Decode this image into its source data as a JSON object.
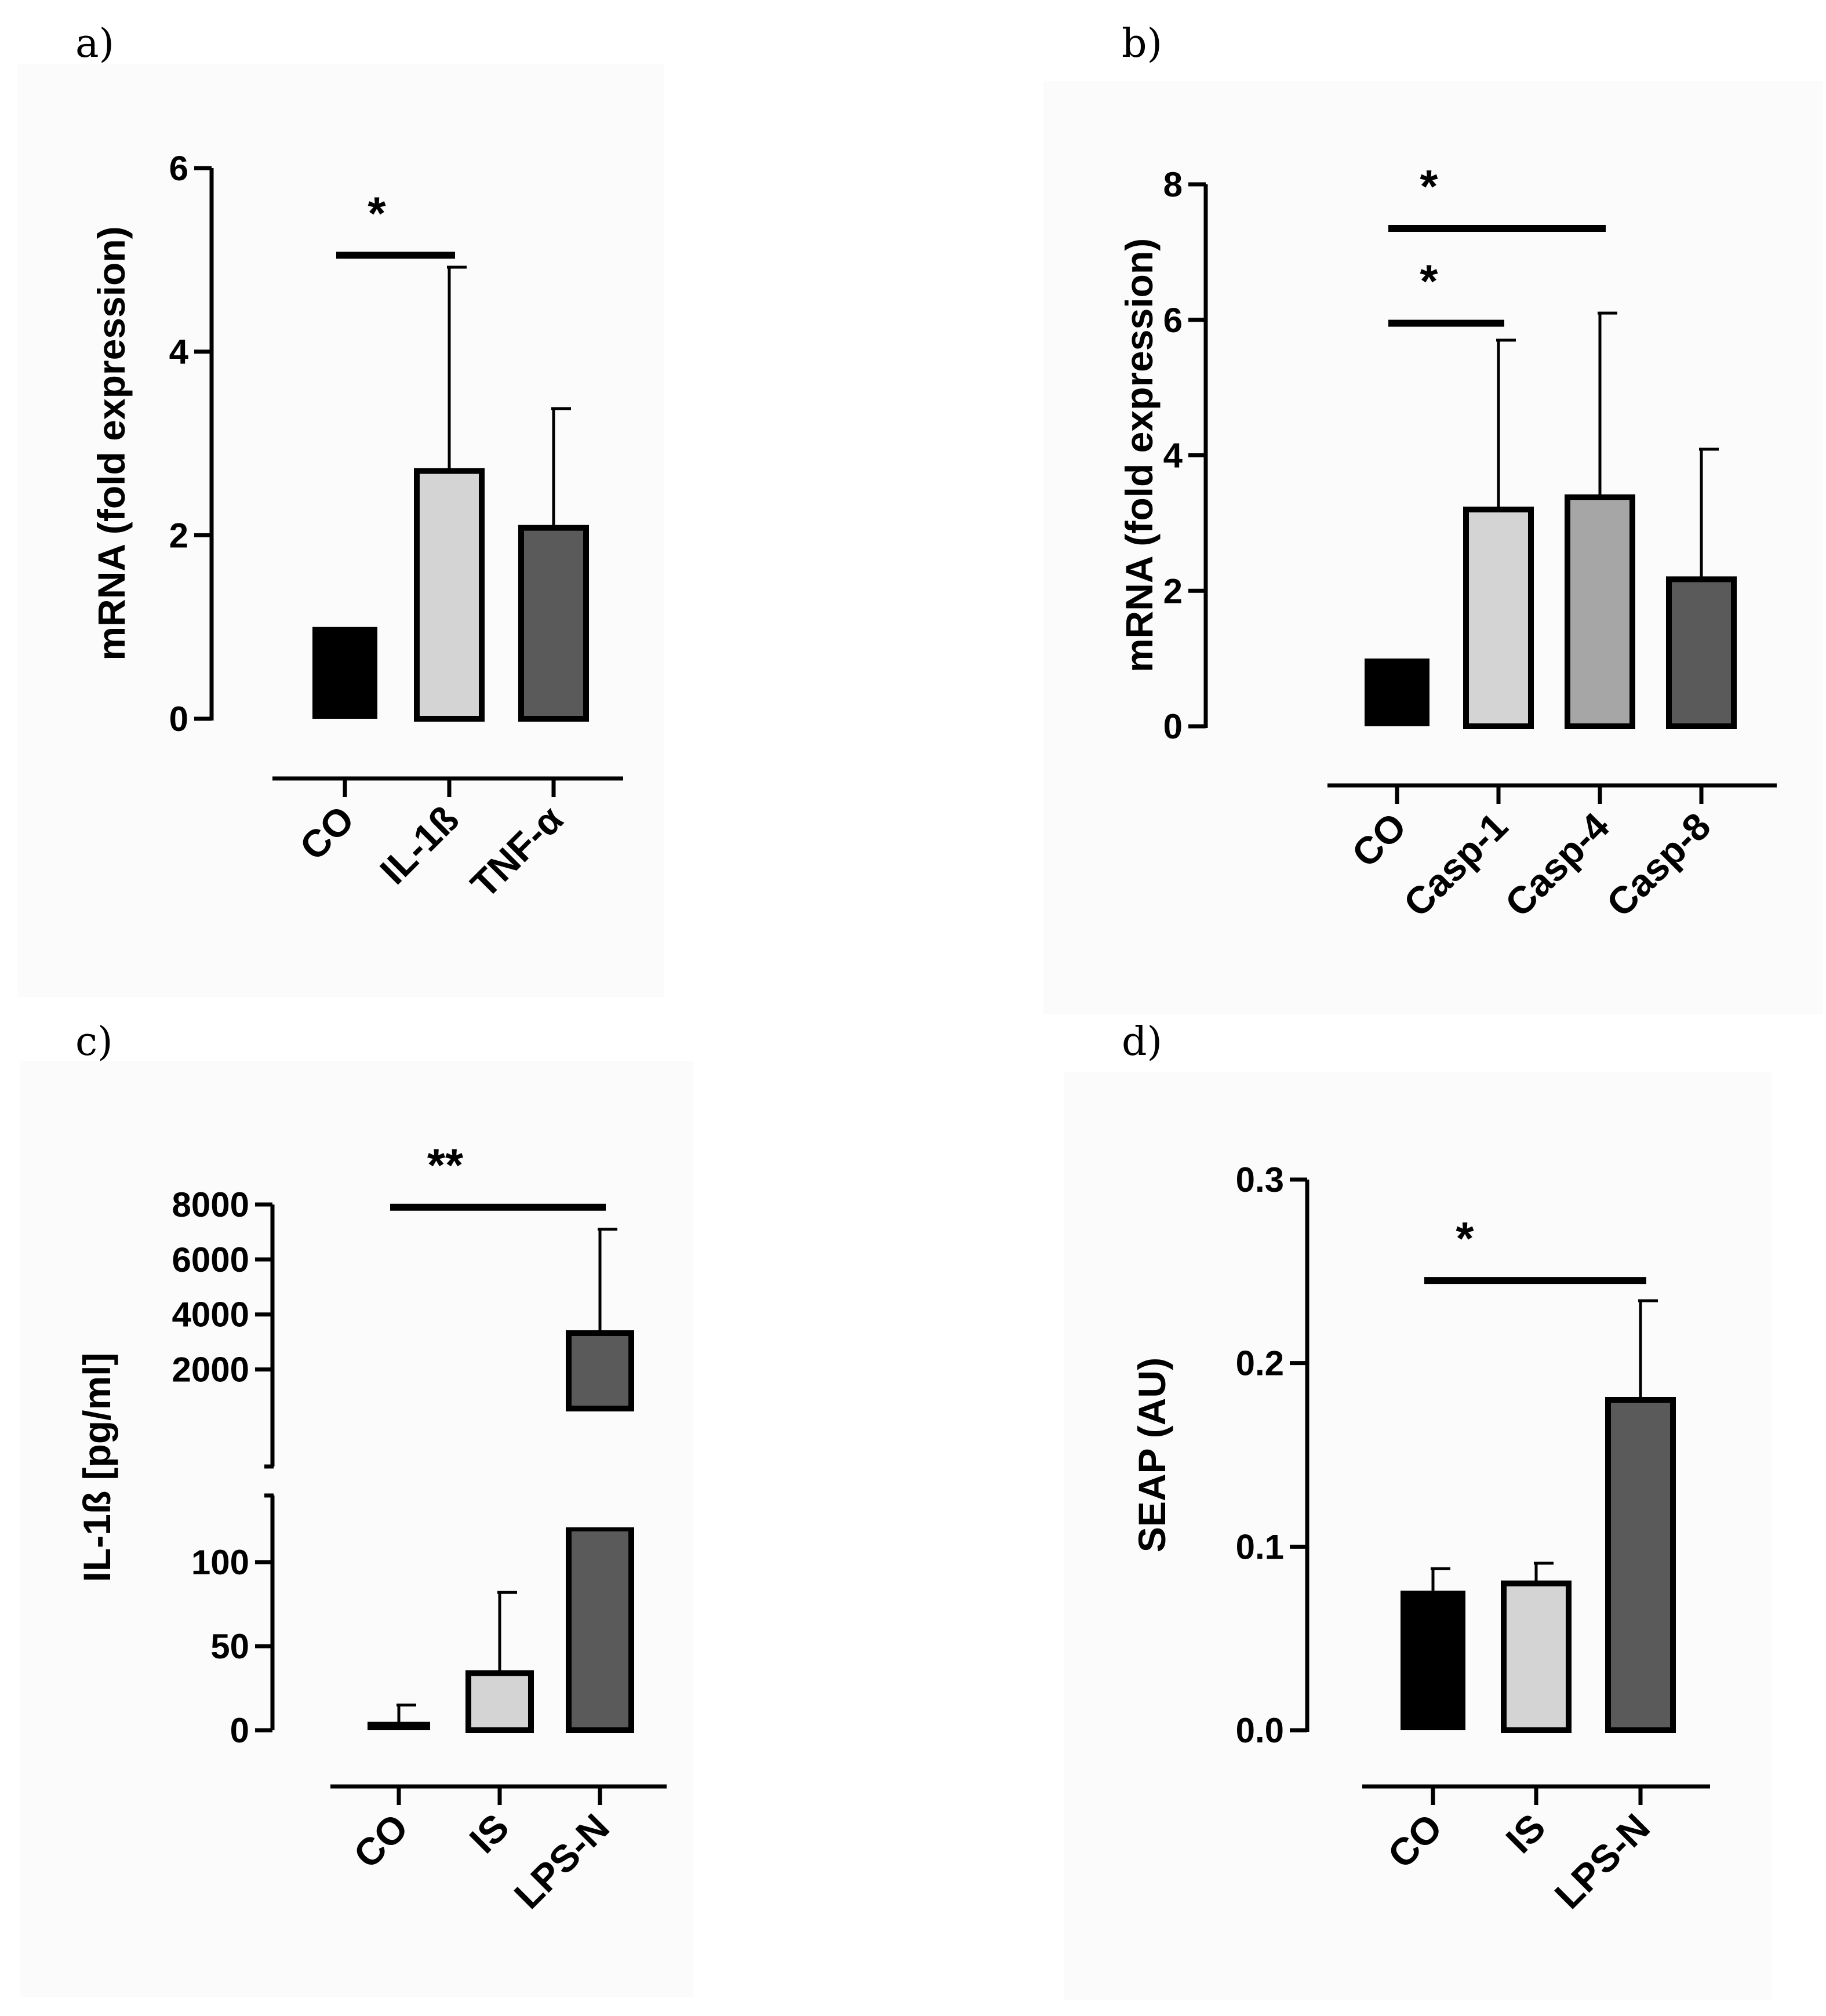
{
  "chart_data": [
    {
      "panel": "a)",
      "type": "bar",
      "ylabel": "mRNA (fold expression)",
      "categories": [
        "CO",
        "IL-1ß",
        "TNF-α"
      ],
      "values": [
        1.0,
        2.7,
        2.08
      ],
      "errors": [
        0,
        2.22,
        1.3
      ],
      "colors": [
        "#000000",
        "#d4d4d4",
        "#5a5a5a"
      ],
      "ylim": [
        0,
        6
      ],
      "yticks": [
        "0",
        "2",
        "4",
        "6"
      ],
      "significance": [
        {
          "from": 0,
          "to": 1,
          "label": "*",
          "y": 5.05
        }
      ]
    },
    {
      "panel": "b)",
      "type": "bar",
      "ylabel": "mRNA (fold expression)",
      "categories": [
        "CO",
        "Casp-1",
        "Casp-4",
        "Casp-8"
      ],
      "values": [
        1.0,
        3.2,
        3.38,
        2.17
      ],
      "errors": [
        0,
        2.5,
        2.72,
        1.92
      ],
      "colors": [
        "#000000",
        "#d4d4d4",
        "#a6a6a6",
        "#5a5a5a"
      ],
      "ylim": [
        0,
        8
      ],
      "yticks": [
        "0",
        "2",
        "4",
        "6",
        "8"
      ],
      "significance": [
        {
          "from": 0,
          "to": 1,
          "label": "*",
          "y": 5.95
        },
        {
          "from": 0,
          "to": 2,
          "label": "*",
          "y": 7.35
        }
      ]
    },
    {
      "panel": "c)",
      "type": "bar",
      "ylabel": "IL-1ß [pg/ml]",
      "categories": [
        "CO",
        "IS",
        "LPS-N"
      ],
      "values": [
        5,
        34,
        3320
      ],
      "errors": [
        10,
        48,
        3780
      ],
      "colors": [
        "#000000",
        "#d4d4d4",
        "#5a5a5a"
      ],
      "axis_break": true,
      "lower_range": [
        0,
        120
      ],
      "upper_range": [
        1000,
        8000
      ],
      "yticks_lower": [
        "0",
        "50",
        "100"
      ],
      "yticks_upper": [
        "2000",
        "4000",
        "6000",
        "8000"
      ],
      "significance": [
        {
          "from": 0,
          "to": 2,
          "label": "**",
          "y": 7900
        }
      ]
    },
    {
      "panel": "d)",
      "type": "bar",
      "ylabel": "SEAP (AU)",
      "categories": [
        "CO",
        "IS",
        "LPS-N"
      ],
      "values": [
        0.076,
        0.08,
        0.18
      ],
      "errors": [
        0.012,
        0.011,
        0.054
      ],
      "colors": [
        "#000000",
        "#d4d4d4",
        "#5a5a5a"
      ],
      "ylim": [
        0,
        0.3
      ],
      "yticks": [
        "0.0",
        "0.1",
        "0.2",
        "0.3"
      ],
      "significance": [
        {
          "from": 0,
          "to": 2,
          "label": "*",
          "y": 0.245
        }
      ]
    }
  ]
}
